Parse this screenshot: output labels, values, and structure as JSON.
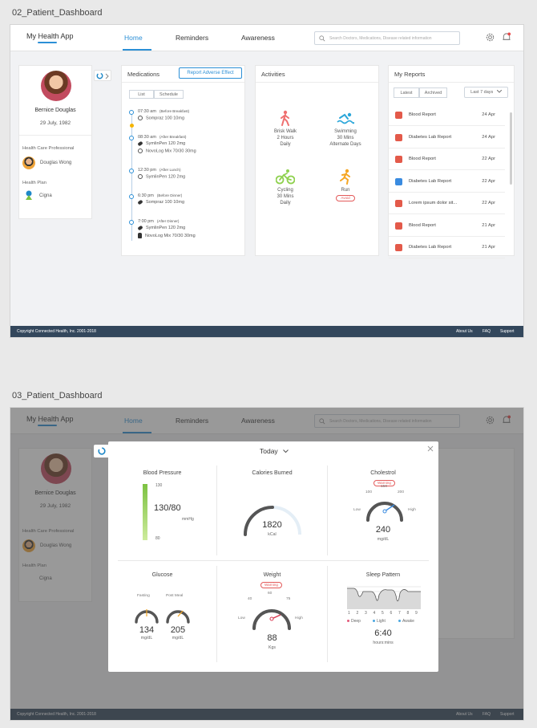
{
  "screens": [
    {
      "label": "02_Patient_Dashboard"
    },
    {
      "label": "03_Patient_Dashboard"
    }
  ],
  "app": {
    "brand": "My Health App",
    "nav": [
      "Home",
      "Reminders",
      "Awareness"
    ],
    "search_placeholder": "Search Doctors, Medications, Disease related information",
    "icons": [
      "gear-icon",
      "bell-icon"
    ],
    "accent": "#2b8fd6"
  },
  "profile": {
    "name": "Bernice Douglas",
    "dob": "29 July, 1982",
    "hcp_label": "Health Care Professional",
    "hcp_name": "Douglas Wong",
    "plan_label": "Health Plan",
    "plan_name": "Cigna"
  },
  "medications": {
    "title": "Medications",
    "report_btn": "Report Adverse Effect",
    "tabs": [
      "List",
      "Schedule"
    ],
    "schedule": [
      {
        "time": "07:30 am",
        "note": "(Before Breakfast)",
        "items": [
          {
            "icon": "check-circle-icon",
            "name": "Sompraz 100 10mg"
          }
        ]
      },
      {
        "time": "08:30 am",
        "note": "(After Breakfast)",
        "items": [
          {
            "icon": "pen-icon",
            "name": "SymlinPen 120 2mg"
          },
          {
            "icon": "check-circle-icon",
            "name": "NovoLog Mix 70/30 30mg"
          }
        ]
      },
      {
        "time": "12:30 pm",
        "note": "(After Lunch)",
        "items": [
          {
            "icon": "check-circle-icon",
            "name": "SymlinPen 120 2mg"
          }
        ]
      },
      {
        "time": "6:30 pm",
        "note": "(Before Dinner)",
        "items": [
          {
            "icon": "pen-icon",
            "name": "Sompraz 100 10mg"
          }
        ]
      },
      {
        "time": "7:00 pm",
        "note": "(After Dinner)",
        "items": [
          {
            "icon": "pen-icon",
            "name": "SymlinPen 120 2mg"
          },
          {
            "icon": "bottle-icon",
            "name": "NovoLog Mix 70/30 30mg"
          }
        ]
      }
    ]
  },
  "activities": {
    "title": "Activities",
    "items": [
      {
        "icon": "walk-icon",
        "name": "Brisk Walk",
        "line1": "2 Hours",
        "line2": "Daily",
        "color": "#ef7070"
      },
      {
        "icon": "swim-icon",
        "name": "Swimming",
        "line1": "30 Mins",
        "line2": "Alternate Days",
        "color": "#2aa6d9"
      },
      {
        "icon": "cycle-icon",
        "name": "Cycling",
        "line1": "30 Mins",
        "line2": "Daily",
        "color": "#8fd14f"
      },
      {
        "icon": "run-icon",
        "name": "Run",
        "badge": "Avoid",
        "color": "#f5a623"
      }
    ]
  },
  "reports": {
    "title": "My Reports",
    "tabs": [
      "Latest",
      "Archived"
    ],
    "range": "Last 7 days",
    "rows": [
      {
        "name": "Blood Report",
        "date": "24 Apr",
        "color": "#e35a4a"
      },
      {
        "name": "Diabetes Lab Report",
        "date": "24 Apr",
        "color": "#e35a4a"
      },
      {
        "name": "Blood Report",
        "date": "22 Apr",
        "color": "#e35a4a"
      },
      {
        "name": "Diabetes Lab Report",
        "date": "22 Apr",
        "color": "#3a8be0"
      },
      {
        "name": "Lorem ipsum dolor sit...",
        "date": "22 Apr",
        "color": "#e35a4a"
      },
      {
        "name": "Blood Report",
        "date": "21 Apr",
        "color": "#e35a4a"
      },
      {
        "name": "Diabetes Lab Report",
        "date": "21 Apr",
        "color": "#e35a4a"
      }
    ]
  },
  "footer": {
    "copyright": "Copyright Connected Health, Inc. 2001-2018",
    "links": [
      "About Us",
      "FAQ",
      "Support"
    ]
  },
  "modal": {
    "period": "Today",
    "blood_pressure": {
      "title": "Blood Pressure",
      "max": "130",
      "min": "80",
      "value": "130/80",
      "unit": "mmHg",
      "level": 1.0
    },
    "calories": {
      "title": "Calories Burned",
      "value": "1820",
      "unit": "kCal",
      "fraction": 0.5
    },
    "cholesterol": {
      "title": "Cholestrol",
      "badge": "Warning",
      "low": "Low",
      "high": "High",
      "ticks": [
        "100",
        "150",
        "200"
      ],
      "value": "240",
      "unit": "mg/dL"
    },
    "glucose": {
      "title": "Glucose",
      "fasting_label": "Fasting",
      "fasting_value": "134",
      "postmeal_label": "Post Meal",
      "postmeal_value": "205",
      "unit": "mg/dL"
    },
    "weight": {
      "title": "Weight",
      "badge": "Warning",
      "low": "Low",
      "high": "High",
      "ticks": [
        "40",
        "60",
        "75"
      ],
      "value": "88",
      "unit": "Kgs"
    },
    "sleep": {
      "title": "Sleep Pattern",
      "hours": [
        "1",
        "2",
        "3",
        "4",
        "5",
        "6",
        "7",
        "8",
        "9"
      ],
      "legend": [
        {
          "name": "Deep",
          "color": "#e35a7a"
        },
        {
          "name": "Light",
          "color": "#4aa7e0"
        },
        {
          "name": "Awake",
          "color": "#4aa7e0"
        }
      ],
      "value": "6:40",
      "unit": "hours:mins"
    }
  }
}
